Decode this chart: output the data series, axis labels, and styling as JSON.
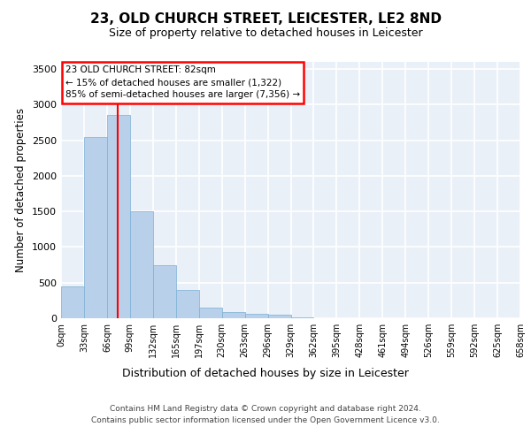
{
  "title_line1": "23, OLD CHURCH STREET, LEICESTER, LE2 8ND",
  "title_line2": "Size of property relative to detached houses in Leicester",
  "xlabel": "Distribution of detached houses by size in Leicester",
  "ylabel": "Number of detached properties",
  "bar_values": [
    450,
    2550,
    2850,
    1500,
    750,
    400,
    150,
    90,
    60,
    50,
    10,
    5,
    2,
    0,
    0,
    0,
    0,
    0,
    0,
    0
  ],
  "bar_color": "#b8d0ea",
  "bar_edge_color": "#7aafd4",
  "categories": [
    "0sqm",
    "33sqm",
    "66sqm",
    "99sqm",
    "132sqm",
    "165sqm",
    "197sqm",
    "230sqm",
    "263sqm",
    "296sqm",
    "329sqm",
    "362sqm",
    "395sqm",
    "428sqm",
    "461sqm",
    "494sqm",
    "526sqm",
    "559sqm",
    "592sqm",
    "625sqm",
    "658sqm"
  ],
  "ylim": [
    0,
    3600
  ],
  "yticks": [
    0,
    500,
    1000,
    1500,
    2000,
    2500,
    3000,
    3500
  ],
  "annotation_box_text": "23 OLD CHURCH STREET: 82sqm\n← 15% of detached houses are smaller (1,322)\n85% of semi-detached houses are larger (7,356) →",
  "property_sqm": 82,
  "background_color": "#eaf0f8",
  "grid_color": "#ffffff",
  "footer_line1": "Contains HM Land Registry data © Crown copyright and database right 2024.",
  "footer_line2": "Contains public sector information licensed under the Open Government Licence v3.0."
}
